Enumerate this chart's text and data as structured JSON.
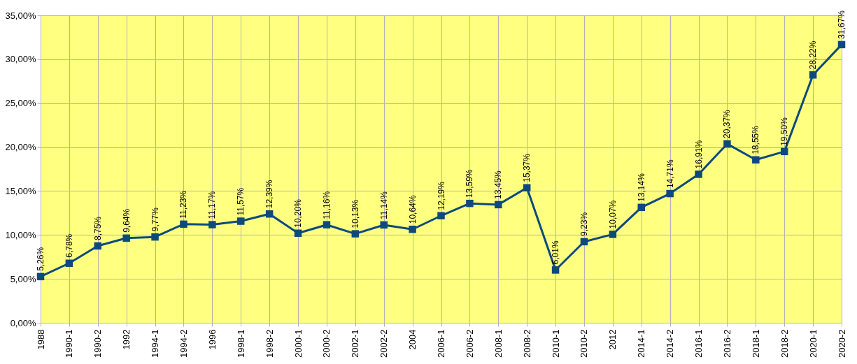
{
  "chart_data": {
    "type": "line",
    "categories": [
      "1988",
      "1990-1",
      "1990-2",
      "1992",
      "1994-1",
      "1994-2",
      "1996",
      "1998-1",
      "1998-2",
      "2000-1",
      "2000-2",
      "2002-1",
      "2002-2",
      "2004",
      "2006-1",
      "2006-2",
      "2008-1",
      "2008-2",
      "2010-1",
      "2010-2",
      "2012",
      "2014-1",
      "2014-2",
      "2016-1",
      "2016-2",
      "2018-1",
      "2018-2",
      "2020-1",
      "2020-2"
    ],
    "series": [
      {
        "color": "#0d4a7c",
        "values": [
          5.26,
          6.78,
          8.75,
          9.64,
          9.77,
          11.23,
          11.17,
          11.57,
          12.39,
          10.2,
          11.16,
          10.13,
          11.14,
          10.64,
          12.19,
          13.59,
          13.45,
          15.37,
          6.01,
          9.23,
          10.07,
          13.14,
          14.71,
          16.91,
          20.37,
          18.55,
          19.5,
          28.22,
          31.67
        ],
        "value_labels": [
          "5,26%",
          "6,78%",
          "8,75%",
          "9,64%",
          "9,77%",
          "11,23%",
          "11,17%",
          "11,57%",
          "12,39%",
          "10,20%",
          "11,16%",
          "10,13%",
          "11,14%",
          "10,64%",
          "12,19%",
          "13,59%",
          "13,45%",
          "15,37%",
          "6,01%",
          "9,23%",
          "10,07%",
          "13,14%",
          "14,71%",
          "16,91%",
          "20,37%",
          "18,55%",
          "19,50%",
          "28,22%",
          "31,67%"
        ]
      }
    ],
    "ylim": [
      0,
      35
    ],
    "yticks": [
      {
        "value": 0,
        "label": "0,00%"
      },
      {
        "value": 5,
        "label": "5,00%"
      },
      {
        "value": 10,
        "label": "10,00%"
      },
      {
        "value": 15,
        "label": "15,00%"
      },
      {
        "value": 20,
        "label": "20,00%"
      },
      {
        "value": 25,
        "label": "25,00%"
      },
      {
        "value": 30,
        "label": "30,00%"
      },
      {
        "value": 35,
        "label": "35,00%"
      }
    ],
    "grid": true,
    "marker": "square",
    "line_style": "solid"
  }
}
